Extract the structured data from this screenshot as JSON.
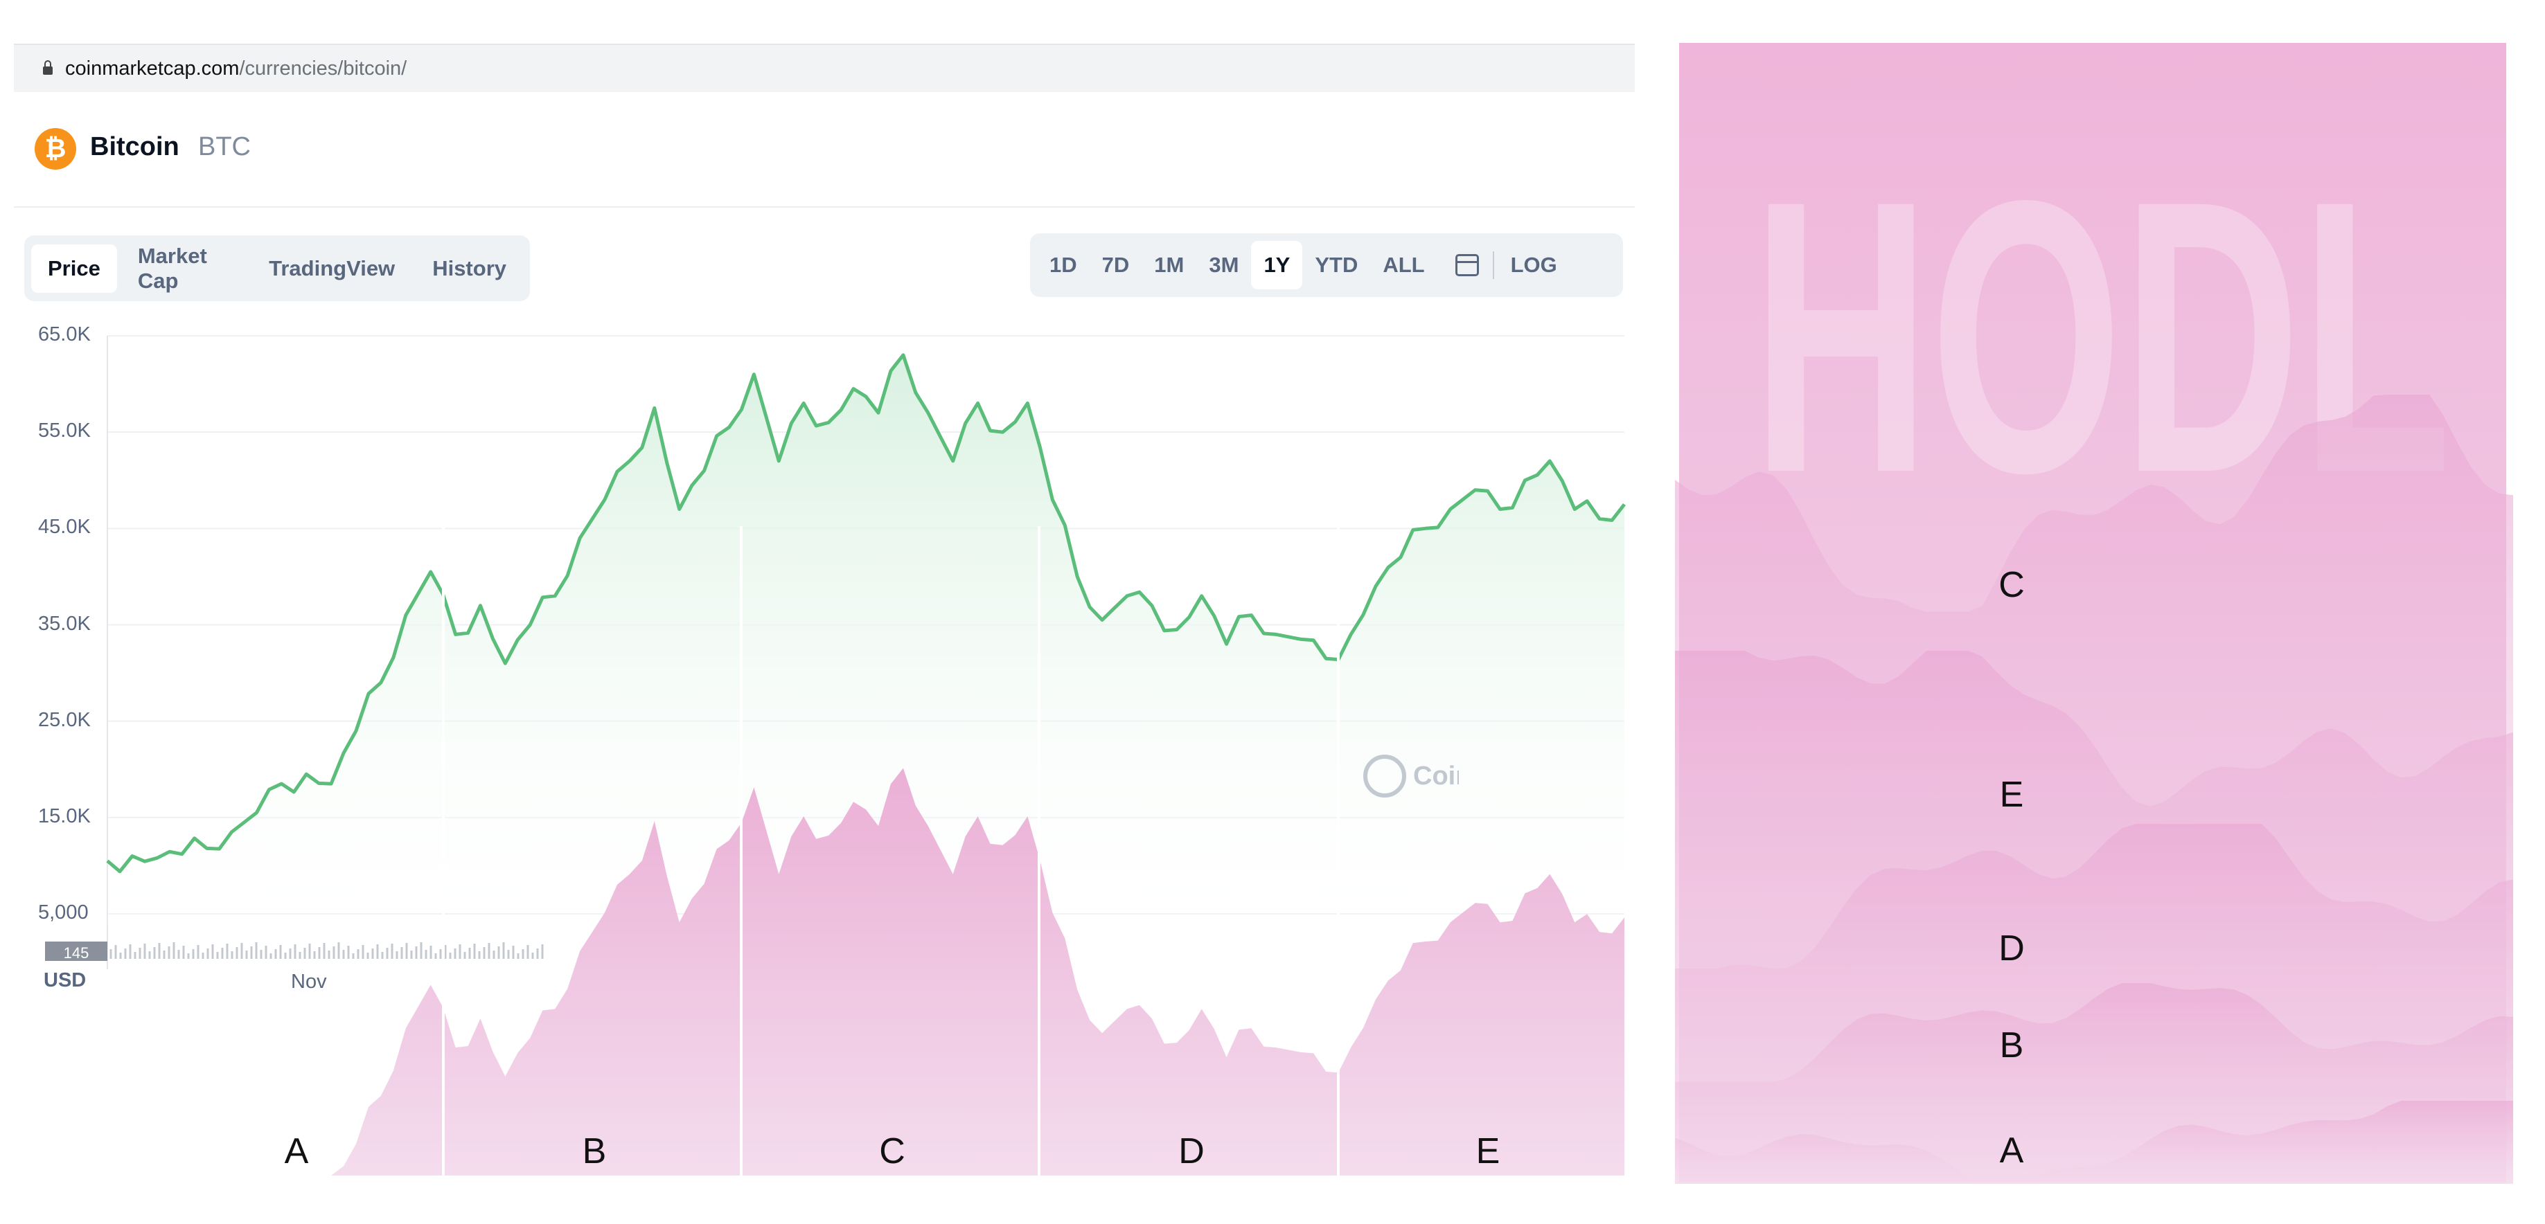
{
  "browser": {
    "url_host": "coinmarketcap.com",
    "url_path": "/currencies/bitcoin/"
  },
  "coin": {
    "name": "Bitcoin",
    "symbol": "BTC",
    "logo_glyph": "₿",
    "logo_color": "#f7931a"
  },
  "chart_tabs": [
    {
      "label": "Price",
      "active": true
    },
    {
      "label": "Market Cap",
      "active": false
    },
    {
      "label": "TradingView",
      "active": false
    },
    {
      "label": "History",
      "active": false
    }
  ],
  "range_tabs": [
    {
      "label": "1D",
      "active": false
    },
    {
      "label": "7D",
      "active": false
    },
    {
      "label": "1M",
      "active": false
    },
    {
      "label": "3M",
      "active": false
    },
    {
      "label": "1Y",
      "active": true
    },
    {
      "label": "YTD",
      "active": false
    },
    {
      "label": "ALL",
      "active": false
    }
  ],
  "log_label": "LOG",
  "currency_label": "USD",
  "volume_badge": "145",
  "watermark_text": "CoinMarketCap",
  "colors": {
    "price_line": "#5bbd7a",
    "price_fill": "#d9f1e1",
    "overlay_pink": "#ecb6d8",
    "text_muted": "#58667e"
  },
  "chart_data": {
    "type": "area",
    "y_tick_labels": [
      "65.0K",
      "55.0K",
      "45.0K",
      "35.0K",
      "25.0K",
      "15.0K",
      "5,000"
    ],
    "y_ticks": [
      65000,
      55000,
      45000,
      35000,
      25000,
      15000,
      5000
    ],
    "x_tick_labels": [
      "Nov"
    ],
    "ylim": [
      0,
      65000
    ],
    "series": [
      {
        "values": [
          10500,
          11000,
          10800,
          11200,
          11800,
          13500,
          15500,
          18500,
          19500,
          18500,
          24000,
          29000,
          36000,
          40500,
          34000,
          37000,
          31000,
          35000,
          38000,
          44000,
          48000,
          52000,
          57500,
          47000,
          51000,
          55500,
          61000,
          52000,
          58000,
          56000,
          59500,
          57000,
          63000,
          57000,
          52000,
          58000,
          55000,
          58000,
          48000,
          40000,
          35500,
          38000,
          37000,
          34500,
          38000,
          33000,
          36000,
          34000,
          33500,
          31500,
          34000,
          39000,
          42000,
          45000,
          47000,
          49000,
          47000,
          50000,
          52000,
          47000,
          46000,
          47500
        ]
      }
    ],
    "overlay_segments": [
      "A",
      "B",
      "C",
      "D",
      "E"
    ]
  },
  "segment_labels": [
    "A",
    "B",
    "C",
    "D",
    "E"
  ],
  "ridge_labels": [
    "C",
    "E",
    "D",
    "B",
    "A"
  ],
  "ridge_background_text": "HODL"
}
